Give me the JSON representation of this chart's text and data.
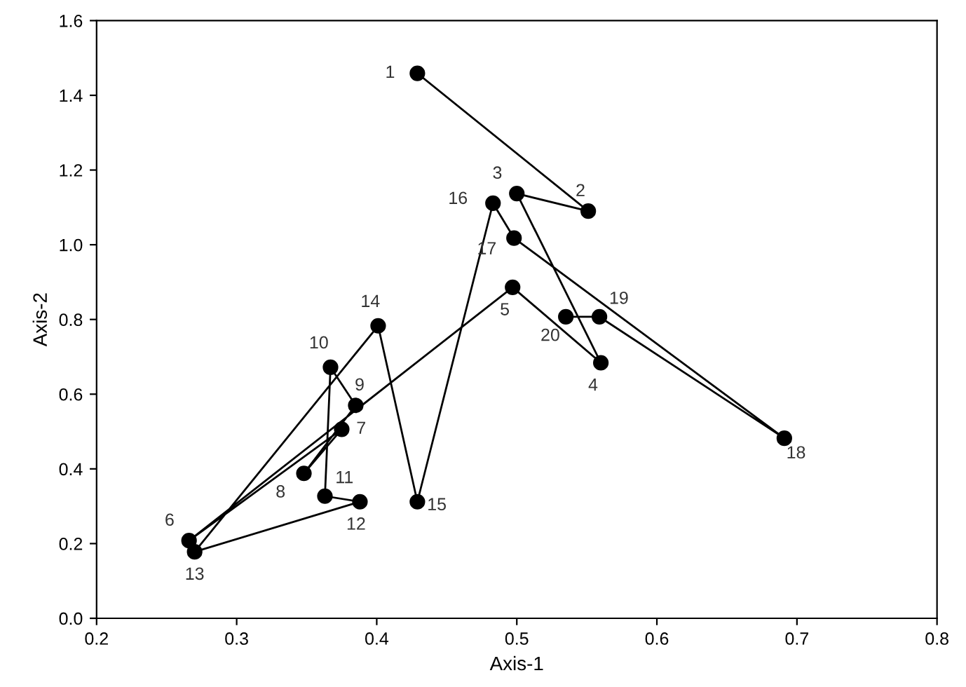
{
  "chart_data": {
    "type": "line",
    "xlabel": "Axis-1",
    "ylabel": "Axis-2",
    "xlim": [
      0.2,
      0.8
    ],
    "ylim": [
      0,
      1.6
    ],
    "xticks": [
      0.2,
      0.3,
      0.4,
      0.5,
      0.6,
      0.7,
      0.8
    ],
    "yticks": [
      {
        "value": 0,
        "label": "0.0"
      },
      0.2,
      0.4,
      0.6,
      0.8,
      {
        "value": 1,
        "label": "1.0"
      },
      1.2,
      1.4,
      1.6
    ],
    "grid": false,
    "legend": false,
    "marker": "circle",
    "line_style": "solid",
    "series": [
      {
        "color": "#000000",
        "x": [
          0.429,
          0.551,
          0.5,
          0.56,
          0.497,
          0.266,
          0.375,
          0.348,
          0.385,
          0.367,
          0.363,
          0.388,
          0.27,
          0.401,
          0.429,
          0.483,
          0.498,
          0.691,
          0.559,
          0.535
        ],
        "values": [
          1.459,
          1.09,
          1.137,
          0.684,
          0.886,
          0.208,
          0.506,
          0.388,
          0.57,
          0.672,
          0.327,
          0.312,
          0.178,
          0.783,
          0.312,
          1.111,
          1.018,
          0.482,
          0.807,
          0.807
        ]
      }
    ],
    "annotations": [
      {
        "text": "1",
        "x": 0.429,
        "y": 1.459
      },
      {
        "text": "2",
        "x": 0.551,
        "y": 1.09
      },
      {
        "text": "3",
        "x": 0.5,
        "y": 1.137
      },
      {
        "text": "4",
        "x": 0.56,
        "y": 0.684
      },
      {
        "text": "5",
        "x": 0.497,
        "y": 0.886
      },
      {
        "text": "6",
        "x": 0.266,
        "y": 0.208
      },
      {
        "text": "7",
        "x": 0.375,
        "y": 0.506
      },
      {
        "text": "8",
        "x": 0.348,
        "y": 0.388
      },
      {
        "text": "9",
        "x": 0.385,
        "y": 0.57
      },
      {
        "text": "10",
        "x": 0.367,
        "y": 0.672
      },
      {
        "text": "11",
        "x": 0.363,
        "y": 0.327
      },
      {
        "text": "12",
        "x": 0.388,
        "y": 0.312
      },
      {
        "text": "13",
        "x": 0.27,
        "y": 0.178
      },
      {
        "text": "14",
        "x": 0.401,
        "y": 0.783
      },
      {
        "text": "15",
        "x": 0.429,
        "y": 0.312
      },
      {
        "text": "16",
        "x": 0.483,
        "y": 1.111
      },
      {
        "text": "17",
        "x": 0.498,
        "y": 1.018
      },
      {
        "text": "18",
        "x": 0.691,
        "y": 0.482
      },
      {
        "text": "19",
        "x": 0.559,
        "y": 0.807
      },
      {
        "text": "20",
        "x": 0.535,
        "y": 0.807
      }
    ]
  }
}
